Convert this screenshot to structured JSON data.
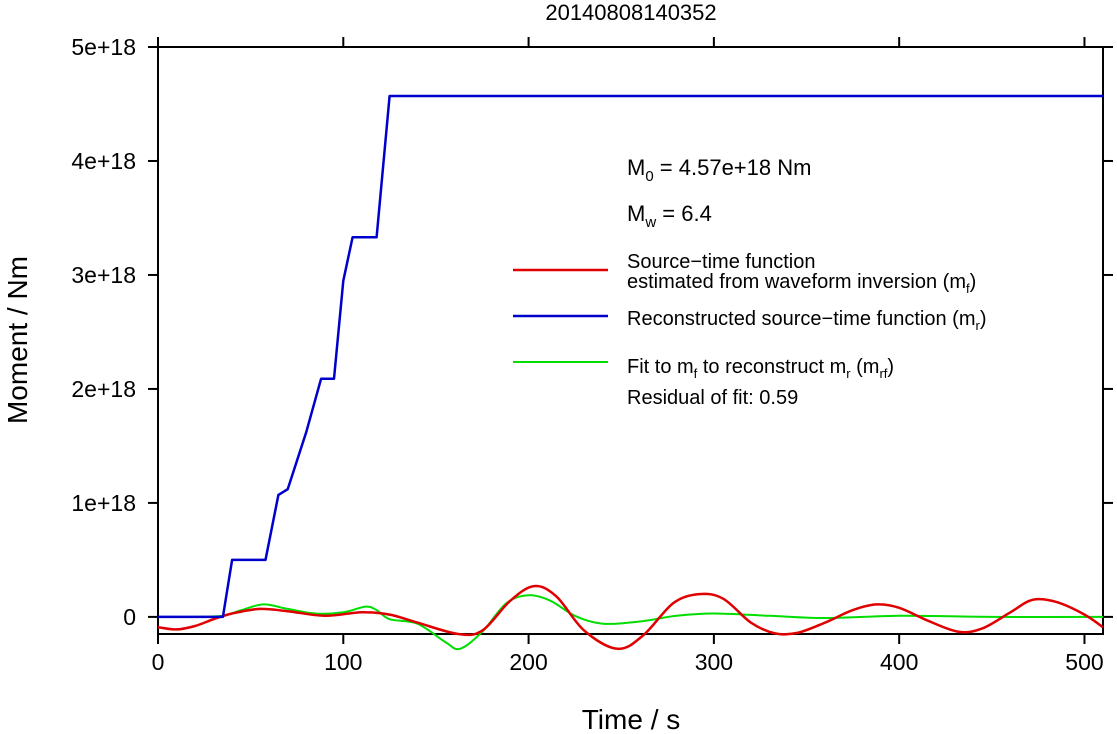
{
  "chart_data": {
    "type": "line",
    "title": "20140808140352",
    "xlabel": "Time / s",
    "ylabel": "Moment / Nm",
    "xlim": [
      0,
      510
    ],
    "ylim": [
      -1.5e+17,
      5e+18
    ],
    "xticks": [
      0,
      100,
      200,
      300,
      400,
      500
    ],
    "xtick_labels": [
      "0",
      "100",
      "200",
      "300",
      "400",
      "500"
    ],
    "yticks": [
      0,
      1e+18,
      2e+18,
      3e+18,
      4e+18,
      5e+18
    ],
    "ytick_labels": [
      "0",
      "1e+18",
      "2e+18",
      "3e+18",
      "4e+18",
      "5e+18"
    ],
    "grid": false,
    "legend_position": "right",
    "annotations": {
      "m0_symbol": "M",
      "m0_sub": "0",
      "m0_value": " = 4.57e+18 Nm",
      "mw_symbol": "M",
      "mw_sub": "w",
      "mw_value": " = 6.4",
      "residual": "Residual of fit: 0.59"
    },
    "legend": [
      {
        "key": "mf",
        "color": "#e00000",
        "line1": "Source−time function",
        "line2_pre": "estimated from waveform inversion (m",
        "line2_sub": "f",
        "line2_post": ")"
      },
      {
        "key": "mr",
        "color": "#0000cc",
        "pre": "Reconstructed source−time function (m",
        "sub": "r",
        "post": ")"
      },
      {
        "key": "mrf",
        "color": "#00dd00",
        "pre": "Fit to m",
        "sub1": "f",
        "mid": " to reconstruct m",
        "sub2": "r",
        "mid2": " (m",
        "sub3": "rf",
        "post": ")"
      }
    ],
    "series": [
      {
        "key": "mf",
        "color": "#e00000",
        "x": [
          0,
          10,
          20,
          30,
          40,
          55,
          70,
          90,
          110,
          125,
          140,
          162,
          175,
          190,
          203,
          215,
          230,
          248,
          262,
          278,
          292,
          305,
          320,
          333,
          345,
          360,
          375,
          388,
          400,
          415,
          432,
          445,
          460,
          472,
          485,
          500,
          510
        ],
        "y": [
          -9e+16,
          -1.1e+17,
          -8e+16,
          -2e+16,
          3e+16,
          7e+16,
          5e+16,
          1e+16,
          4e+16,
          2e+16,
          -5e+16,
          -1.5e+17,
          -1.2e+17,
          1.4e+17,
          2.7e+17,
          1.8e+17,
          -1.2e+17,
          -2.8e+17,
          -1.6e+17,
          1.2e+17,
          2e+17,
          1.6e+17,
          -5e+16,
          -1.45e+17,
          -1.4e+17,
          -5e+16,
          6e+16,
          1.1e+17,
          8e+16,
          -3e+16,
          -1.3e+17,
          -1e+17,
          4e+16,
          1.5e+17,
          1.3e+17,
          2e+16,
          -9e+16
        ]
      },
      {
        "key": "mr",
        "color": "#0000cc",
        "x": [
          0,
          35,
          40,
          58,
          65,
          70,
          80,
          88,
          95,
          100,
          105,
          118,
          125,
          510
        ],
        "y": [
          0,
          0,
          5e+17,
          5e+17,
          1.07e+18,
          1.12e+18,
          1.62e+18,
          2.09e+18,
          2.09e+18,
          2.95e+18,
          3.33e+18,
          3.33e+18,
          4.57e+18,
          4.57e+18
        ]
      },
      {
        "key": "mrf",
        "color": "#00dd00",
        "x": [
          0,
          20,
          35,
          45,
          57,
          70,
          85,
          100,
          112,
          118,
          125,
          140,
          155,
          163,
          175,
          188,
          200,
          212,
          225,
          240,
          260,
          280,
          300,
          330,
          360,
          400,
          450,
          510
        ],
        "y": [
          0,
          0,
          1e+16,
          6e+16,
          1.1e+17,
          7e+16,
          3e+16,
          4e+16,
          9e+16,
          6e+16,
          -2e+16,
          -6e+16,
          -2.2e+17,
          -2.8e+17,
          -1.3e+17,
          1.2e+17,
          1.9e+17,
          1.4e+17,
          1e+16,
          -6e+16,
          -4e+16,
          1e+16,
          3e+16,
          1e+16,
          -1e+16,
          1e+16,
          0,
          0
        ]
      }
    ]
  }
}
